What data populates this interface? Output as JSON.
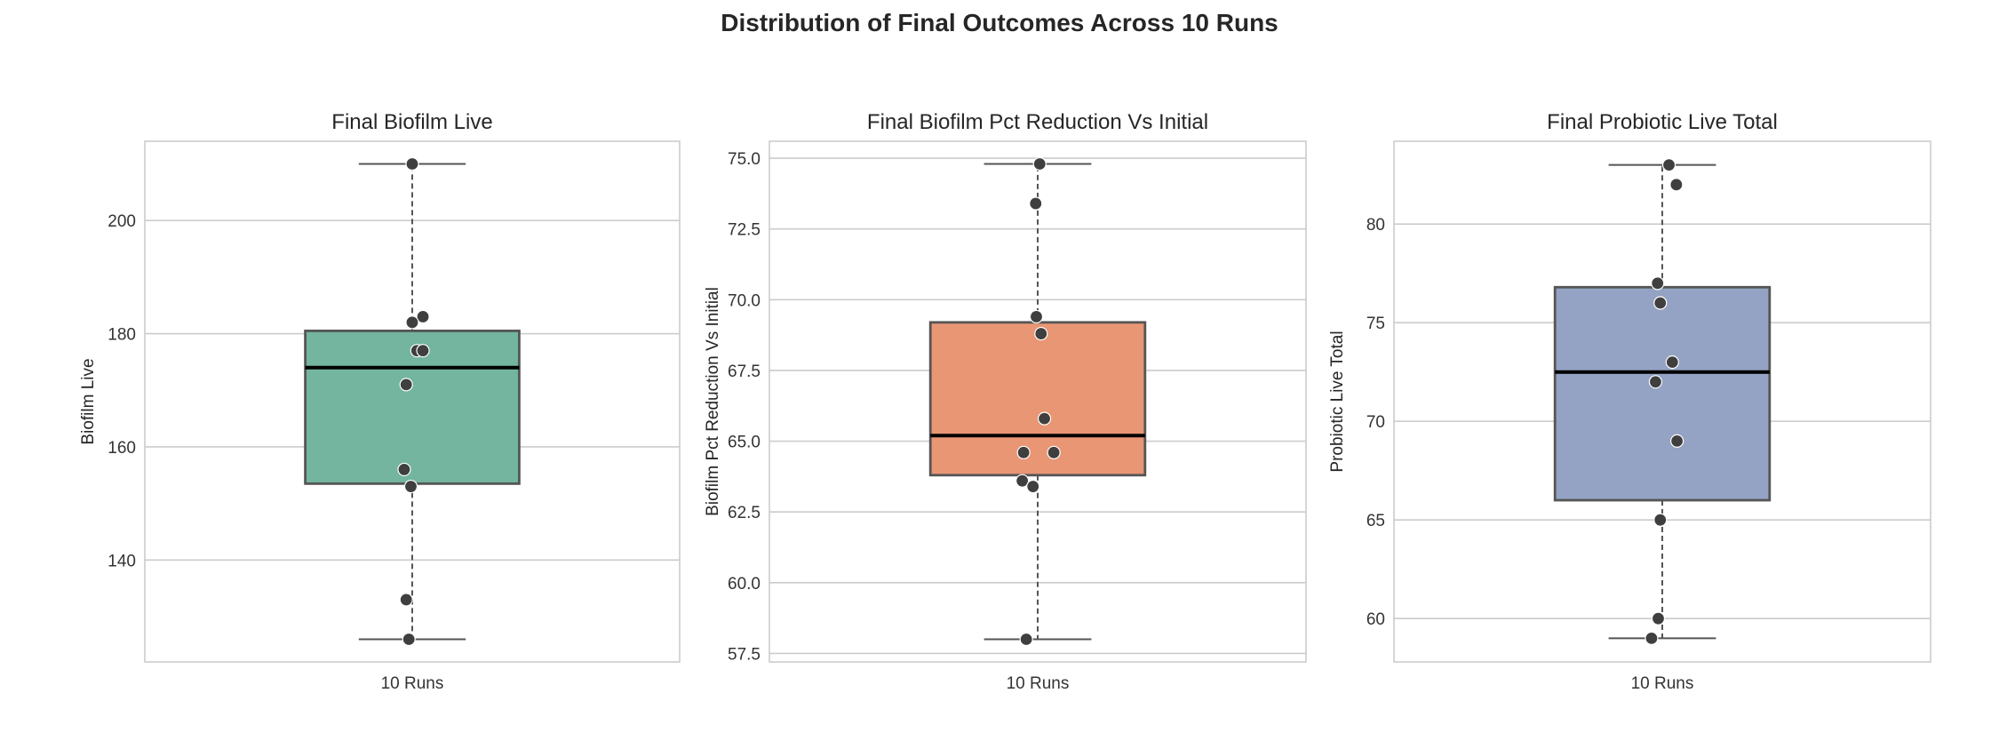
{
  "figure": {
    "title": "Distribution of Final Outcomes Across 10 Runs"
  },
  "chart_data": [
    {
      "type": "box",
      "title": "Final Biofilm Live",
      "xlabel": "",
      "ylabel": "Biofilm Live",
      "category": "10 Runs",
      "color": "#73b59f",
      "ylim": [
        122,
        214
      ],
      "yticks": [
        140,
        160,
        180,
        200
      ],
      "tick_decimals": 0,
      "box": {
        "whisker_low": 126,
        "q1": 153.5,
        "median": 174,
        "q3": 180.5,
        "whisker_high": 210
      },
      "points": [
        210,
        183,
        182,
        177,
        177,
        171,
        156,
        153,
        133,
        126
      ],
      "jitter": [
        0,
        0.16,
        0,
        0.07,
        0.16,
        -0.09,
        -0.12,
        -0.02,
        -0.09,
        -0.05
      ],
      "grid": true
    },
    {
      "type": "box",
      "title": "Final Biofilm Pct Reduction Vs Initial",
      "xlabel": "",
      "ylabel": "Biofilm Pct Reduction Vs Initial",
      "category": "10 Runs",
      "color": "#e89674",
      "ylim": [
        57.2,
        75.6
      ],
      "yticks": [
        57.5,
        60.0,
        62.5,
        65.0,
        67.5,
        70.0,
        72.5,
        75.0
      ],
      "tick_decimals": 1,
      "box": {
        "whisker_low": 58.0,
        "q1": 63.8,
        "median": 65.2,
        "q3": 69.2,
        "whisker_high": 74.8
      },
      "points": [
        74.8,
        73.4,
        69.4,
        68.8,
        65.8,
        64.6,
        64.6,
        63.6,
        63.4,
        58.0
      ],
      "jitter": [
        0.03,
        -0.03,
        -0.02,
        0.05,
        0.1,
        -0.21,
        0.24,
        -0.23,
        -0.07,
        -0.17
      ],
      "grid": true
    },
    {
      "type": "box",
      "title": "Final Probiotic Live Total",
      "xlabel": "",
      "ylabel": "Probiotic Live Total",
      "category": "10 Runs",
      "color": "#94a3c3",
      "ylim": [
        57.8,
        84.2
      ],
      "yticks": [
        60,
        65,
        70,
        75,
        80
      ],
      "tick_decimals": 0,
      "box": {
        "whisker_low": 59,
        "q1": 66,
        "median": 72.5,
        "q3": 76.8,
        "whisker_high": 83
      },
      "points": [
        83,
        82,
        77,
        76,
        73,
        72,
        69,
        65,
        60,
        59
      ],
      "jitter": [
        0.1,
        0.21,
        -0.07,
        -0.03,
        0.15,
        -0.1,
        0.22,
        -0.03,
        -0.06,
        -0.16
      ],
      "grid": true
    }
  ]
}
